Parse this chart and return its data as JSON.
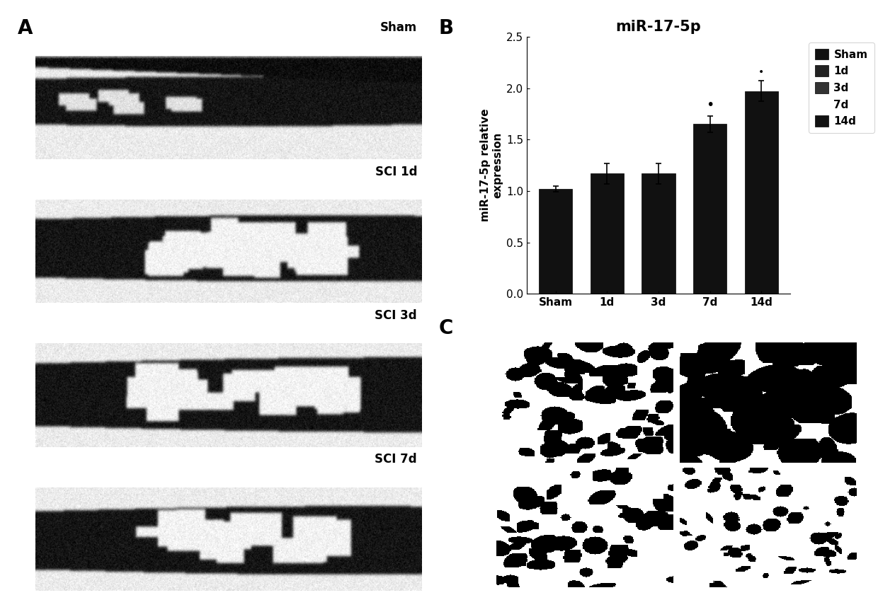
{
  "title": "miR-17-5p",
  "ylabel": "miR-17-5p relative\nexpression",
  "categories": [
    "Sham",
    "1d",
    "3d",
    "7d",
    "14d"
  ],
  "values": [
    1.02,
    1.17,
    1.17,
    1.65,
    1.97
  ],
  "errors": [
    0.03,
    0.1,
    0.1,
    0.08,
    0.1
  ],
  "bar_color": "#111111",
  "ylim": [
    0.0,
    2.5
  ],
  "yticks": [
    0.0,
    0.5,
    1.0,
    1.5,
    2.0,
    2.5
  ],
  "legend_labels": [
    "Sham",
    "1d",
    "3d",
    "7d",
    "14d"
  ],
  "legend_colors": [
    "#111111",
    "#222222",
    "#333333",
    "#ffffff",
    "#111111"
  ],
  "panel_A_label": "A",
  "panel_B_label": "B",
  "panel_C_label": "C",
  "background_color": "#ffffff",
  "text_color": "#000000",
  "title_fontsize": 15,
  "label_fontsize": 11,
  "tick_fontsize": 11,
  "panel_label_fontsize": 20,
  "image_labels_A": [
    "Sham",
    "SCI 1d",
    "SCI 3d",
    "SCI 7d"
  ]
}
